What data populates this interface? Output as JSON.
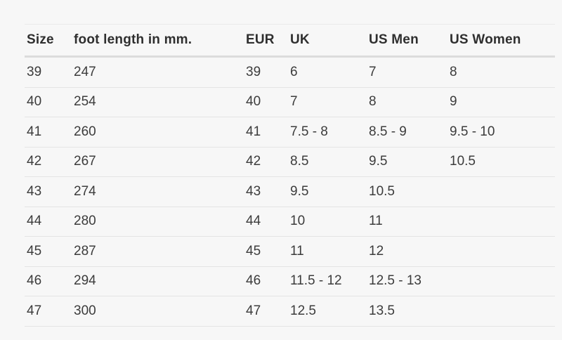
{
  "colors": {
    "background": "#f7f7f7",
    "body_text": "#3c3c3c",
    "header_text": "#2f2f2f",
    "header_border": "#dcdcdc",
    "row_border": "#e4e4e4"
  },
  "table": {
    "headers": {
      "size": "Size",
      "foot_length": "foot length in mm.",
      "eur": "EUR",
      "uk": "UK",
      "us_men": "US Men",
      "us_women": "US Women"
    },
    "rows": [
      {
        "size": "39",
        "foot_length_mm": "247",
        "eur": "39",
        "uk": "6",
        "us_men": "7",
        "us_women": "8"
      },
      {
        "size": "40",
        "foot_length_mm": "254",
        "eur": "40",
        "uk": "7",
        "us_men": "8",
        "us_women": "9"
      },
      {
        "size": "41",
        "foot_length_mm": "260",
        "eur": "41",
        "uk": "7.5 - 8",
        "us_men": "8.5 - 9",
        "us_women": "9.5 - 10"
      },
      {
        "size": "42",
        "foot_length_mm": "267",
        "eur": "42",
        "uk": "8.5",
        "us_men": "9.5",
        "us_women": "10.5"
      },
      {
        "size": "43",
        "foot_length_mm": "274",
        "eur": "43",
        "uk": "9.5",
        "us_men": "10.5",
        "us_women": ""
      },
      {
        "size": "44",
        "foot_length_mm": "280",
        "eur": "44",
        "uk": "10",
        "us_men": "11",
        "us_women": ""
      },
      {
        "size": "45",
        "foot_length_mm": "287",
        "eur": "45",
        "uk": "11",
        "us_men": "12",
        "us_women": ""
      },
      {
        "size": "46",
        "foot_length_mm": "294",
        "eur": "46",
        "uk": "11.5 - 12",
        "us_men": "12.5 - 13",
        "us_women": ""
      },
      {
        "size": "47",
        "foot_length_mm": "300",
        "eur": "47",
        "uk": "12.5",
        "us_men": "13.5",
        "us_women": ""
      }
    ]
  }
}
